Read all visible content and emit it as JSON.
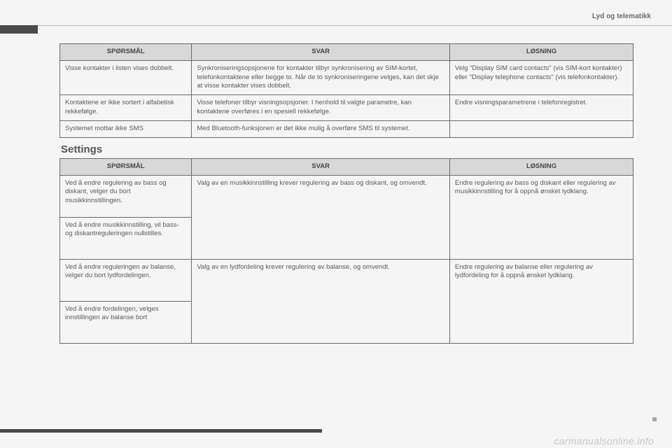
{
  "page_header": "Lyd og telematikk",
  "section_title": "Settings",
  "watermark": "carmanualsonline.info",
  "table1": {
    "headers": {
      "q": "SPØRSMÅL",
      "a": "SVAR",
      "s": "LØSNING"
    },
    "rows": [
      {
        "q": "Visse kontakter i listen vises dobbelt.",
        "a": "Synkroniseringsopsjonene for kontakter tilbyr synkronisering av SIM-kortet, telefonkontaktene eller begge to. Når de to synkroniseringene velges, kan det skje at visse kontakter vises dobbelt.",
        "s": "Velg \"Display SIM card contacts\" (vis SIM-kort kontakter) eller \"Display telephone contacts\" (vis telefonkontakter)."
      },
      {
        "q": "Kontaktene er ikke sortert i alfabetisk rekkefølge.",
        "a": "Visse telefoner tilbyr visningsopsjoner. I henhold til valgte parametre, kan kontaktene overføres i en spesiell rekkefølge.",
        "s": "Endre visningsparametrene i telefonregistret."
      },
      {
        "q": "Systemet mottar ikke SMS",
        "a": "Med Bluetooth-funksjonen er det ikke mulig å overføre SMS til systemet.",
        "s": ""
      }
    ]
  },
  "table2": {
    "headers": {
      "q": "SPØRSMÅL",
      "a": "SVAR",
      "s": "LØSNING"
    },
    "rows": [
      {
        "q": "Ved å endre regulering av bass og diskant, velger du bort musikkinnstillingen.",
        "a": "Valg av en musikkinnstilling krever regulering av bass og diskant, og omvendt.",
        "s": "Endre regulering av bass og diskant eller regulering av musikkinnstilling for å oppnå ønsket lydklang."
      },
      {
        "q": "Ved å endre musikkinnstilling, vil bass- og diskantreguleringen nullstilles."
      },
      {
        "q": "Ved å endre reguleringen av balanse, velger du bort lydfordelingen.",
        "a": "Valg av en lydfordeling krever regulering av balanse, og omvendt.",
        "s": "Endre regulering av balanse eller regulering av lydfordeling for å oppnå ønsket lydklang."
      },
      {
        "q": "Ved å endre fordelingen, velges innstillingen av balanse bort"
      }
    ]
  }
}
